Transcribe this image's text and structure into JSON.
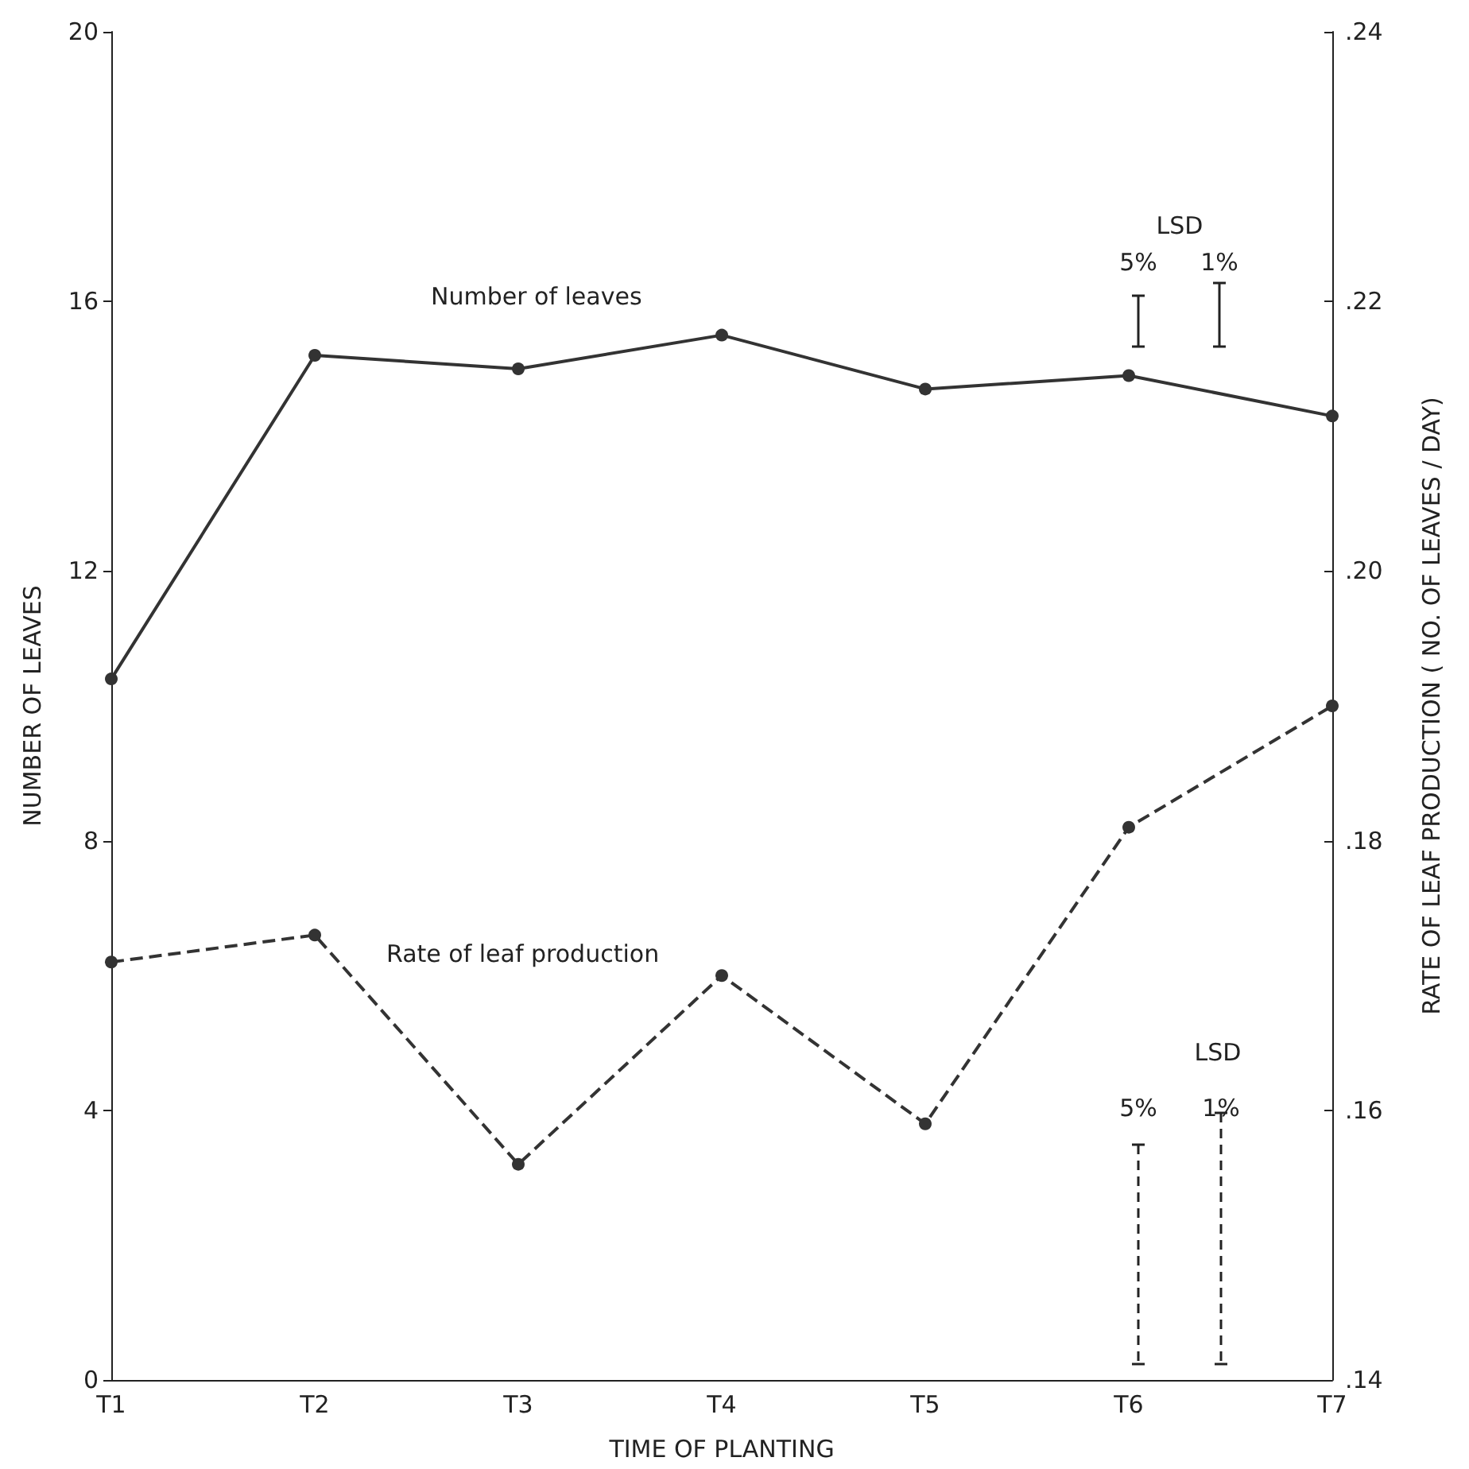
{
  "chart_data": {
    "type": "line",
    "xlabel": "TIME OF PLANTING",
    "ylabel": "NUMBER OF LEAVES",
    "y2label": "RATE OF LEAF PRODUCTION ( NO. OF LEAVES / DAY)",
    "categories": [
      "T1",
      "T2",
      "T3",
      "T4",
      "T5",
      "T6",
      "T7"
    ],
    "ylim": [
      0,
      20
    ],
    "yticks": [
      0,
      4,
      8,
      12,
      16,
      20
    ],
    "y2lim": [
      0.14,
      0.24
    ],
    "y2ticks": [
      {
        "value": 0.14,
        "label": ".14"
      },
      {
        "value": 0.16,
        "label": ".16"
      },
      {
        "value": 0.18,
        "label": ".18"
      },
      {
        "value": 0.2,
        "label": ".20"
      },
      {
        "value": 0.22,
        "label": ".22"
      },
      {
        "value": 0.24,
        "label": ".24"
      }
    ],
    "series": [
      {
        "name": "Number of leaves",
        "color": "#333333",
        "line_style": "solid",
        "values": [
          10.4,
          15.2,
          15.0,
          15.5,
          14.7,
          14.9,
          14.3
        ]
      },
      {
        "name": "Rate of leaf production",
        "color": "#333333",
        "line_style": "dashed",
        "axis": "y2",
        "values": [
          0.171,
          0.173,
          0.156,
          0.17,
          0.159,
          0.181,
          0.19
        ]
      }
    ],
    "marker": "circle",
    "grid": false,
    "legend": false,
    "annotations": [
      "LSD",
      "5%",
      "1%",
      "LSD",
      "5%",
      "1%"
    ]
  }
}
